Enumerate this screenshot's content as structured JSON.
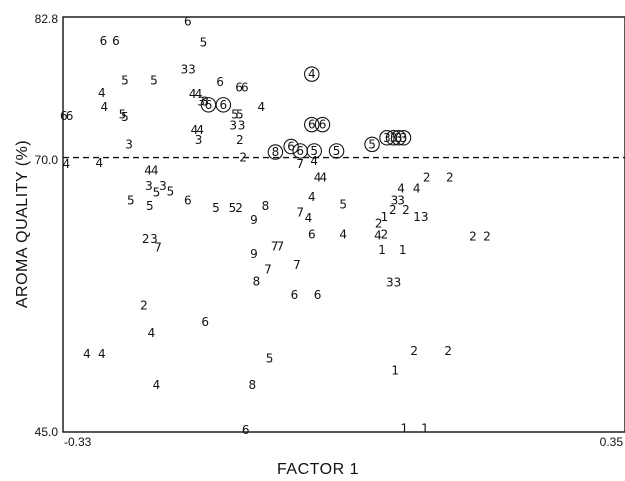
{
  "chart_data": {
    "type": "scatter",
    "xlabel": "FACTOR 1",
    "ylabel": "AROMA QUALITY (%)",
    "xlim": [
      -0.33,
      0.35
    ],
    "ylim": [
      45.0,
      82.8
    ],
    "x_tick_labels": [
      "-0.33",
      "0.35"
    ],
    "y_tick_labels": [
      "82.8",
      "70.0",
      "45.0"
    ],
    "reference_line": {
      "y": 70.0,
      "style": "dashed"
    },
    "point_marker": "digit label per sample; some labels circled",
    "points": [
      {
        "x": -0.329,
        "y": 73.8,
        "label": "6"
      },
      {
        "x": -0.322,
        "y": 73.8,
        "label": "6"
      },
      {
        "x": -0.326,
        "y": 69.4,
        "label": "4"
      },
      {
        "x": -0.286,
        "y": 69.5,
        "label": "4"
      },
      {
        "x": -0.281,
        "y": 80.6,
        "label": "6"
      },
      {
        "x": -0.266,
        "y": 80.6,
        "label": "6"
      },
      {
        "x": -0.283,
        "y": 75.9,
        "label": "4"
      },
      {
        "x": -0.28,
        "y": 74.6,
        "label": "4"
      },
      {
        "x": -0.258,
        "y": 73.9,
        "label": "5"
      },
      {
        "x": -0.255,
        "y": 77.0,
        "label": "5"
      },
      {
        "x": -0.22,
        "y": 77.0,
        "label": "5"
      },
      {
        "x": -0.255,
        "y": 73.7,
        "label": "5"
      },
      {
        "x": -0.25,
        "y": 71.2,
        "label": "3"
      },
      {
        "x": -0.227,
        "y": 68.8,
        "label": "4"
      },
      {
        "x": -0.219,
        "y": 68.8,
        "label": "4"
      },
      {
        "x": -0.226,
        "y": 67.4,
        "label": "3"
      },
      {
        "x": -0.217,
        "y": 66.8,
        "label": "5"
      },
      {
        "x": -0.209,
        "y": 67.4,
        "label": "3"
      },
      {
        "x": -0.2,
        "y": 66.9,
        "label": "5"
      },
      {
        "x": -0.248,
        "y": 66.1,
        "label": "5"
      },
      {
        "x": -0.225,
        "y": 65.6,
        "label": "5"
      },
      {
        "x": -0.23,
        "y": 62.6,
        "label": "2"
      },
      {
        "x": -0.22,
        "y": 62.6,
        "label": "3"
      },
      {
        "x": -0.215,
        "y": 61.8,
        "label": "7"
      },
      {
        "x": -0.232,
        "y": 56.5,
        "label": "2"
      },
      {
        "x": -0.223,
        "y": 54.0,
        "label": "4"
      },
      {
        "x": -0.301,
        "y": 52.1,
        "label": "4"
      },
      {
        "x": -0.283,
        "y": 52.1,
        "label": "4"
      },
      {
        "x": -0.217,
        "y": 49.3,
        "label": "4"
      },
      {
        "x": -0.179,
        "y": 82.4,
        "label": "6"
      },
      {
        "x": -0.16,
        "y": 80.5,
        "label": "5"
      },
      {
        "x": -0.183,
        "y": 78.0,
        "label": "3"
      },
      {
        "x": -0.174,
        "y": 78.0,
        "label": "3"
      },
      {
        "x": -0.173,
        "y": 75.8,
        "label": "4"
      },
      {
        "x": -0.166,
        "y": 75.8,
        "label": "4"
      },
      {
        "x": -0.163,
        "y": 75.1,
        "label": "3"
      },
      {
        "x": -0.158,
        "y": 75.1,
        "label": "3"
      },
      {
        "x": -0.14,
        "y": 76.9,
        "label": "6"
      },
      {
        "x": -0.117,
        "y": 76.4,
        "label": "6"
      },
      {
        "x": -0.11,
        "y": 76.4,
        "label": "6"
      },
      {
        "x": -0.171,
        "y": 72.5,
        "label": "4"
      },
      {
        "x": -0.164,
        "y": 72.5,
        "label": "4"
      },
      {
        "x": -0.166,
        "y": 71.6,
        "label": "3"
      },
      {
        "x": -0.179,
        "y": 66.1,
        "label": "6"
      },
      {
        "x": -0.145,
        "y": 65.4,
        "label": "5"
      },
      {
        "x": -0.122,
        "y": 73.9,
        "label": "5"
      },
      {
        "x": -0.116,
        "y": 73.9,
        "label": "5"
      },
      {
        "x": -0.124,
        "y": 72.9,
        "label": "3"
      },
      {
        "x": -0.114,
        "y": 72.9,
        "label": "3"
      },
      {
        "x": -0.116,
        "y": 71.6,
        "label": "2"
      },
      {
        "x": -0.112,
        "y": 70.0,
        "label": "2"
      },
      {
        "x": -0.09,
        "y": 74.6,
        "label": "4"
      },
      {
        "x": -0.125,
        "y": 65.4,
        "label": "5"
      },
      {
        "x": -0.117,
        "y": 65.4,
        "label": "2"
      },
      {
        "x": -0.099,
        "y": 64.3,
        "label": "9"
      },
      {
        "x": -0.085,
        "y": 65.6,
        "label": "8"
      },
      {
        "x": -0.099,
        "y": 61.2,
        "label": "9"
      },
      {
        "x": -0.074,
        "y": 61.9,
        "label": "7"
      },
      {
        "x": -0.067,
        "y": 61.9,
        "label": "7"
      },
      {
        "x": -0.082,
        "y": 59.8,
        "label": "7"
      },
      {
        "x": -0.096,
        "y": 58.7,
        "label": "8"
      },
      {
        "x": -0.158,
        "y": 55.0,
        "label": "6"
      },
      {
        "x": -0.08,
        "y": 51.7,
        "label": "5"
      },
      {
        "x": -0.101,
        "y": 49.3,
        "label": "8"
      },
      {
        "x": -0.109,
        "y": 45.2,
        "label": "6"
      },
      {
        "x": -0.047,
        "y": 60.2,
        "label": "7"
      },
      {
        "x": -0.043,
        "y": 65.0,
        "label": "7"
      },
      {
        "x": -0.033,
        "y": 64.5,
        "label": "4"
      },
      {
        "x": -0.026,
        "y": 69.7,
        "label": "4"
      },
      {
        "x": -0.029,
        "y": 63.0,
        "label": "6"
      },
      {
        "x": -0.05,
        "y": 57.5,
        "label": "6"
      },
      {
        "x": -0.022,
        "y": 57.5,
        "label": "6"
      },
      {
        "x": -0.043,
        "y": 69.4,
        "label": "7"
      },
      {
        "x": -0.022,
        "y": 68.2,
        "label": "4"
      },
      {
        "x": -0.015,
        "y": 68.2,
        "label": "4"
      },
      {
        "x": -0.029,
        "y": 66.4,
        "label": "4"
      },
      {
        "x": 0.009,
        "y": 65.7,
        "label": "5"
      },
      {
        "x": 0.009,
        "y": 63.0,
        "label": "4"
      },
      {
        "x": 0.051,
        "y": 62.9,
        "label": "4"
      },
      {
        "x": 0.052,
        "y": 64.0,
        "label": "2"
      },
      {
        "x": 0.059,
        "y": 64.6,
        "label": "1"
      },
      {
        "x": 0.059,
        "y": 63.0,
        "label": "2"
      },
      {
        "x": 0.056,
        "y": 61.6,
        "label": "1"
      },
      {
        "x": 0.071,
        "y": 66.1,
        "label": "3"
      },
      {
        "x": 0.079,
        "y": 66.1,
        "label": "3"
      },
      {
        "x": 0.069,
        "y": 65.2,
        "label": "2"
      },
      {
        "x": 0.085,
        "y": 65.2,
        "label": "2"
      },
      {
        "x": 0.079,
        "y": 67.2,
        "label": "4"
      },
      {
        "x": 0.098,
        "y": 67.2,
        "label": "4"
      },
      {
        "x": 0.11,
        "y": 68.2,
        "label": "2"
      },
      {
        "x": 0.138,
        "y": 68.2,
        "label": "2"
      },
      {
        "x": 0.081,
        "y": 61.6,
        "label": "1"
      },
      {
        "x": 0.103,
        "y": 64.6,
        "label": "13"
      },
      {
        "x": 0.07,
        "y": 58.6,
        "label": "33"
      },
      {
        "x": 0.166,
        "y": 62.8,
        "label": "2"
      },
      {
        "x": 0.183,
        "y": 62.8,
        "label": "2"
      },
      {
        "x": 0.095,
        "y": 52.4,
        "label": "2"
      },
      {
        "x": 0.136,
        "y": 52.4,
        "label": "2"
      },
      {
        "x": 0.072,
        "y": 50.6,
        "label": "1"
      },
      {
        "x": 0.083,
        "y": 45.3,
        "label": "1"
      },
      {
        "x": 0.108,
        "y": 45.3,
        "label": "1"
      },
      {
        "x": -0.154,
        "y": 74.8,
        "label": "6",
        "circled": true
      },
      {
        "x": -0.136,
        "y": 74.8,
        "label": "6",
        "circled": true
      },
      {
        "x": -0.029,
        "y": 77.6,
        "label": "4",
        "circled": true
      },
      {
        "x": -0.029,
        "y": 73.0,
        "label": "6",
        "circled": true
      },
      {
        "x": -0.016,
        "y": 73.0,
        "label": "6",
        "circled": true
      },
      {
        "x": -0.073,
        "y": 70.5,
        "label": "8",
        "circled": true
      },
      {
        "x": -0.054,
        "y": 71.0,
        "label": "6",
        "circled": true
      },
      {
        "x": -0.043,
        "y": 70.6,
        "label": "6",
        "circled": true
      },
      {
        "x": -0.026,
        "y": 70.6,
        "label": "5",
        "circled": true
      },
      {
        "x": 0.001,
        "y": 70.6,
        "label": "5",
        "circled": true
      },
      {
        "x": 0.044,
        "y": 71.2,
        "label": "5",
        "circled": true
      },
      {
        "x": 0.062,
        "y": 71.8,
        "label": "3",
        "circled": true
      },
      {
        "x": 0.07,
        "y": 71.8,
        "label": "3",
        "circled": true
      },
      {
        "x": 0.076,
        "y": 71.8,
        "label": "3",
        "circled": true
      },
      {
        "x": 0.082,
        "y": 71.8,
        "label": "3",
        "circled": true
      }
    ]
  }
}
